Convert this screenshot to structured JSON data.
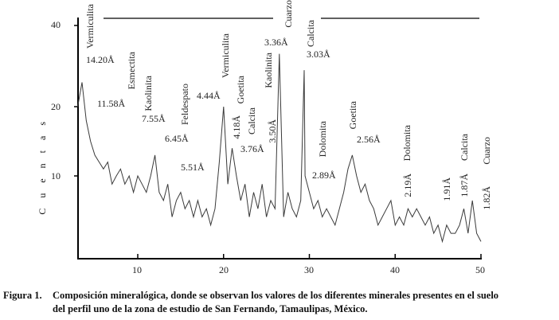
{
  "chart_data": {
    "type": "line",
    "title": "",
    "xlabel": "",
    "ylabel": "C u e n t a s",
    "xlim": [
      3,
      50
    ],
    "ylim": [
      0,
      40
    ],
    "x_ticks": [
      "10",
      "20",
      "30",
      "40",
      "50"
    ],
    "y_ticks": [
      "10",
      "20",
      "40"
    ],
    "grid": false,
    "line_color": "#333333",
    "x": [
      3,
      3.5,
      4,
      4.5,
      5,
      5.5,
      6,
      6.5,
      7,
      7.5,
      8,
      8.5,
      9,
      9.5,
      10,
      10.5,
      11,
      11.5,
      12,
      12.5,
      13,
      13.5,
      14,
      14.5,
      15,
      15.5,
      16,
      16.5,
      17,
      17.5,
      18,
      18.5,
      19,
      19.5,
      20,
      20.5,
      21,
      21.5,
      22,
      22.5,
      23,
      23.5,
      24,
      24.5,
      25,
      25.5,
      26,
      26.5,
      27,
      27.5,
      28,
      28.5,
      29,
      29.4,
      29.5,
      30,
      30.5,
      31,
      31.5,
      32,
      32.5,
      33,
      33.5,
      34,
      34.5,
      35,
      35.5,
      36,
      36.5,
      37,
      37.5,
      38,
      38.5,
      39,
      39.5,
      40,
      40.5,
      41,
      41.5,
      42,
      42.5,
      43,
      43.5,
      44,
      44.5,
      45,
      45.5,
      46,
      46.5,
      47,
      47.5,
      48,
      48.5,
      49,
      49.5,
      50
    ],
    "y": [
      20,
      26,
      18,
      15,
      13,
      12,
      11,
      12,
      9,
      10,
      11,
      9,
      10,
      8,
      10,
      9,
      8,
      10,
      13,
      8,
      7,
      9,
      5,
      7,
      8,
      6,
      7,
      5,
      7,
      5,
      6,
      4,
      6,
      12,
      20,
      9,
      14,
      10,
      7,
      9,
      5,
      8,
      6,
      9,
      5,
      7,
      6,
      33,
      5,
      8,
      6,
      5,
      7,
      29,
      10,
      8,
      6,
      7,
      5,
      6,
      5,
      4,
      6,
      8,
      11,
      13,
      10,
      8,
      9,
      7,
      6,
      4,
      5,
      6,
      7,
      4,
      5,
      4,
      6,
      5,
      6,
      5,
      4,
      5,
      3,
      4,
      2,
      4,
      3,
      3,
      4,
      6,
      3,
      7,
      3,
      2
    ],
    "annotations": [
      {
        "mineral": "Vermiculita",
        "d": "14.20Å"
      },
      {
        "mineral": "Esmectita",
        "d": "11.58Å"
      },
      {
        "mineral": "Kaolinita",
        "d": "7.55Å"
      },
      {
        "mineral": "Feldespato",
        "d": "6.45Å"
      },
      {
        "mineral": "",
        "d": "5.51Å"
      },
      {
        "mineral": "Vermiculita",
        "d": "4.44Å"
      },
      {
        "mineral": "Goetita",
        "d": "4.18Å"
      },
      {
        "mineral": "Calcita",
        "d": "3.76Å"
      },
      {
        "mineral": "Kaolinita",
        "d": "3.50Å"
      },
      {
        "mineral": "Cuarzo",
        "d": "3.36Å"
      },
      {
        "mineral": "Calcita",
        "d": "3.03Å"
      },
      {
        "mineral": "Dolomita",
        "d": "2.89Å"
      },
      {
        "mineral": "Goetita",
        "d": "2.56Å"
      },
      {
        "mineral": "Dolomita",
        "d": "2.19Å"
      },
      {
        "mineral": "",
        "d": "1.91Å"
      },
      {
        "mineral": "Calcita",
        "d": "1.87Å"
      },
      {
        "mineral": "Cuarzo",
        "d": "1.82Å"
      }
    ]
  },
  "caption": {
    "number": "Figura 1.",
    "line1": "Composición mineralógica, donde se observan los valores de los diferentes minerales presentes en el suelo",
    "line2": "del perfil uno de la zona de estudio de San Fernando, Tamaulipas, México."
  }
}
